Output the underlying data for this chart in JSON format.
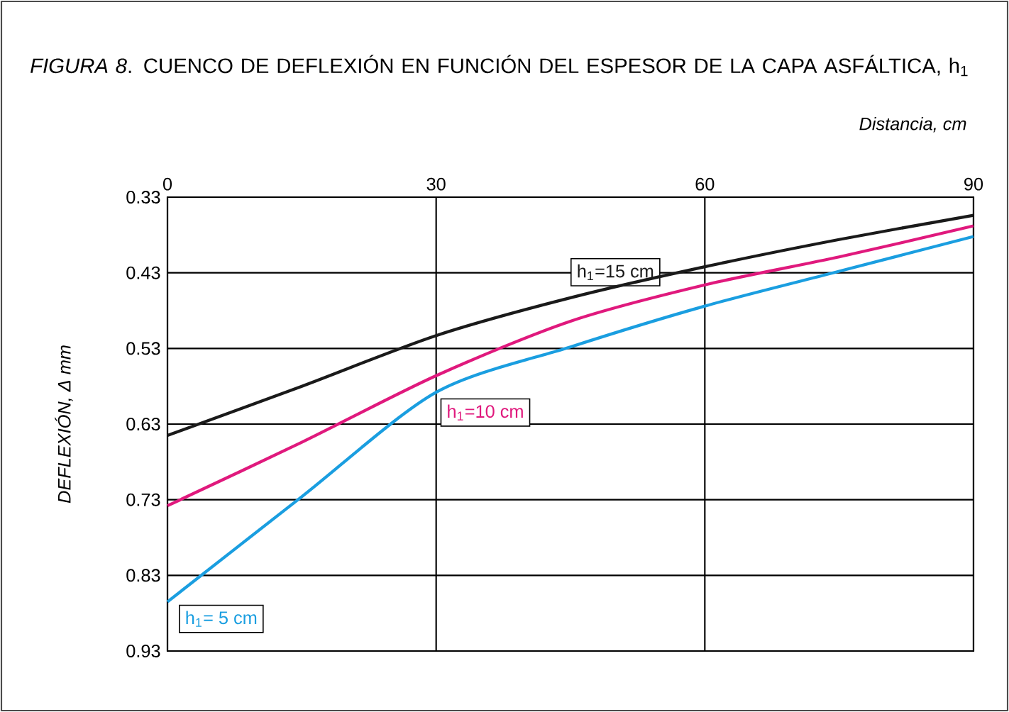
{
  "chart_data": {
    "type": "line",
    "title": "*FIGURA 8*. CUENCO DE DEFLEXIÓN EN FUNCIÓN DEL ESPESOR DE LA CAPA ASFÁLTICA, h$_{1}$",
    "xlabel": "Distancia, cm",
    "ylabel": "DEFLEXIÓN, Δ mm",
    "x": [
      0,
      15,
      30,
      45,
      60,
      75,
      90
    ],
    "series": [
      {
        "name": "h$_{1}$=15 cm",
        "color": "#1a1a1a",
        "values": [
          0.645,
          0.58,
          0.513,
          0.463,
          0.422,
          0.386,
          0.354
        ]
      },
      {
        "name": "h$_{1}$=10 cm",
        "color": "#e0197d",
        "values": [
          0.738,
          0.654,
          0.566,
          0.494,
          0.446,
          0.409,
          0.368
        ]
      },
      {
        "name": "h$_{1}$= 5 cm",
        "color": "#1a9ee0",
        "values": [
          0.865,
          0.726,
          0.588,
          0.528,
          0.474,
          0.428,
          0.382
        ]
      }
    ],
    "xlim": [
      0,
      90
    ],
    "xticks": [
      0,
      30,
      60,
      90
    ],
    "ylim": [
      0.93,
      0.33
    ],
    "yticks": [
      0.33,
      0.43,
      0.53,
      0.63,
      0.73,
      0.83,
      0.93
    ],
    "grid": true,
    "marker": "none",
    "line_style": "solid"
  }
}
